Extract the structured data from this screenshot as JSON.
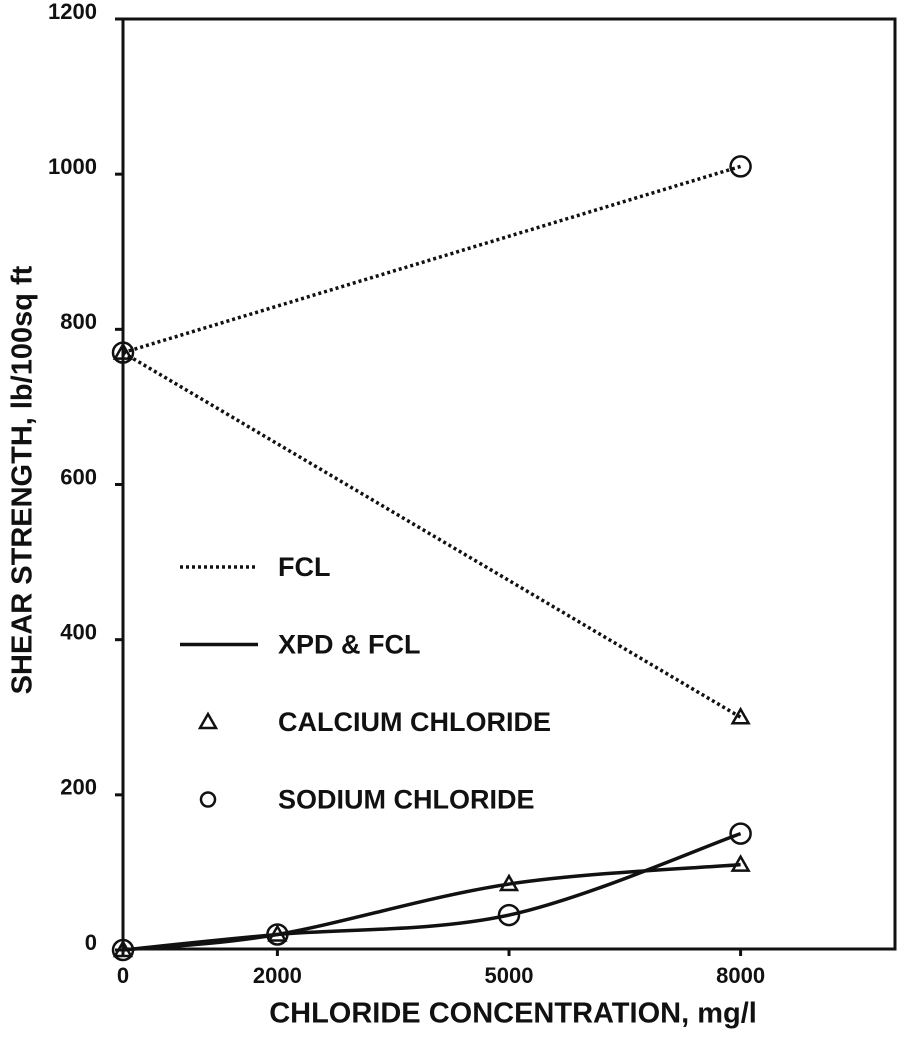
{
  "chart_data": {
    "type": "line",
    "xlabel": "CHLORIDE CONCENTRATION, mg/l",
    "ylabel": "SHEAR STRENGTH, lb/100sq ft",
    "xlim": [
      0,
      10000
    ],
    "ylim": [
      0,
      1200
    ],
    "xticks": [
      0,
      2000,
      5000,
      8000
    ],
    "yticks": [
      0,
      200,
      400,
      600,
      800,
      1000,
      1200
    ],
    "color": "#111111",
    "series": [
      {
        "line": "dotted",
        "marker": "circle",
        "x": [
          0,
          8000
        ],
        "values": [
          770,
          1010
        ]
      },
      {
        "line": "dotted",
        "marker": "triangle",
        "x": [
          0,
          8000
        ],
        "values": [
          770,
          300
        ]
      },
      {
        "line": "solid",
        "marker": "circle",
        "x": [
          0,
          2000,
          5000,
          8000
        ],
        "values": [
          0,
          20,
          45,
          150
        ]
      },
      {
        "line": "solid",
        "marker": "triangle",
        "x": [
          0,
          2000,
          5000,
          8000
        ],
        "values": [
          0,
          20,
          85,
          110
        ]
      }
    ],
    "legend": [
      {
        "label": "FCL",
        "line": "dotted"
      },
      {
        "label": "XPD & FCL",
        "line": "solid"
      },
      {
        "label": "CALCIUM CHLORIDE",
        "marker": "triangle"
      },
      {
        "label": "SODIUM CHLORIDE",
        "marker": "circle"
      }
    ]
  }
}
